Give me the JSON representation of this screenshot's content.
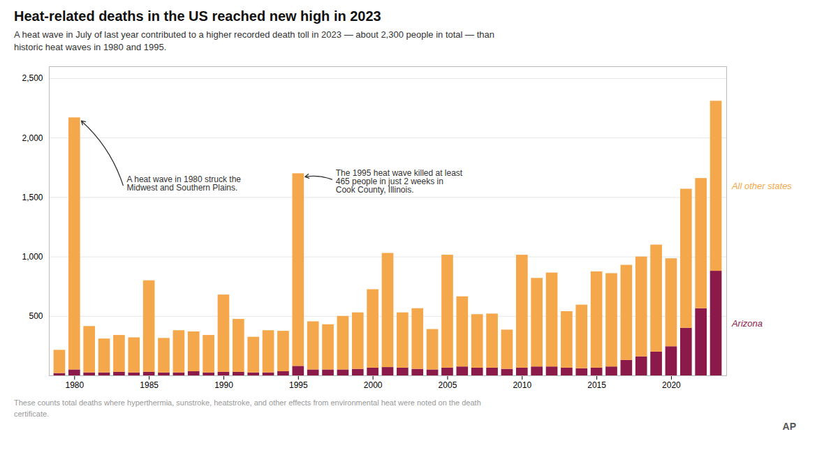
{
  "chart_data": {
    "type": "bar",
    "stacked": true,
    "title": "Heat-related deaths in the US reached new high in 2023",
    "subtitle": "A heat wave in July of last year contributed to a higher recorded death toll in 2023 — about 2,300 people in total — than\nhistoric heat waves in 1980 and 1995.",
    "footnote": "These counts total deaths where hyperthermia, sunstroke, heatstroke, and other effects from environmental heat were noted on the death\ncertificate.",
    "credit": "AP",
    "categories": [
      null,
      "1980",
      null,
      null,
      null,
      null,
      "1985",
      null,
      null,
      null,
      null,
      "1990",
      null,
      null,
      null,
      null,
      "1995",
      null,
      null,
      null,
      null,
      "2000",
      null,
      null,
      null,
      null,
      "2005",
      null,
      null,
      null,
      null,
      "2010",
      null,
      null,
      null,
      null,
      "2015",
      null,
      null,
      null,
      null,
      "2020",
      null,
      null,
      null
    ],
    "series": [
      {
        "name": "Arizona",
        "color": "#8B1A4A",
        "values": [
          20,
          50,
          25,
          25,
          30,
          25,
          30,
          25,
          25,
          35,
          25,
          30,
          30,
          25,
          25,
          35,
          80,
          50,
          50,
          50,
          55,
          65,
          70,
          65,
          55,
          50,
          65,
          75,
          65,
          65,
          55,
          65,
          75,
          75,
          65,
          60,
          65,
          75,
          130,
          160,
          200,
          245,
          400,
          565,
          880
        ]
      },
      {
        "name": "All other states",
        "color": "#F5A84B",
        "values": [
          195,
          2120,
          390,
          285,
          310,
          295,
          770,
          290,
          355,
          335,
          315,
          650,
          445,
          300,
          355,
          340,
          1620,
          405,
          380,
          450,
          475,
          660,
          960,
          465,
          510,
          340,
          950,
          590,
          450,
          455,
          330,
          950,
          745,
          790,
          475,
          535,
          810,
          785,
          800,
          840,
          900,
          740,
          1170,
          1095,
          1430
        ]
      }
    ],
    "ylim": [
      0,
      2600
    ],
    "yticks": [
      500,
      {
        "value": 1000,
        "label": "1,000"
      },
      {
        "value": 1500,
        "label": "1,500"
      },
      {
        "value": 2000,
        "label": "2,000"
      },
      {
        "value": 2500,
        "label": "2,500"
      }
    ],
    "grid": true,
    "annotations": [
      {
        "text": "A heat wave in 1980 struck the\nMidwest and Southern Plains.",
        "category": "1980"
      },
      {
        "text": "The 1995 heat wave killed at least\n465 people in just 2 weeks in\nCook County, Illinois.",
        "category": "1995"
      }
    ]
  }
}
